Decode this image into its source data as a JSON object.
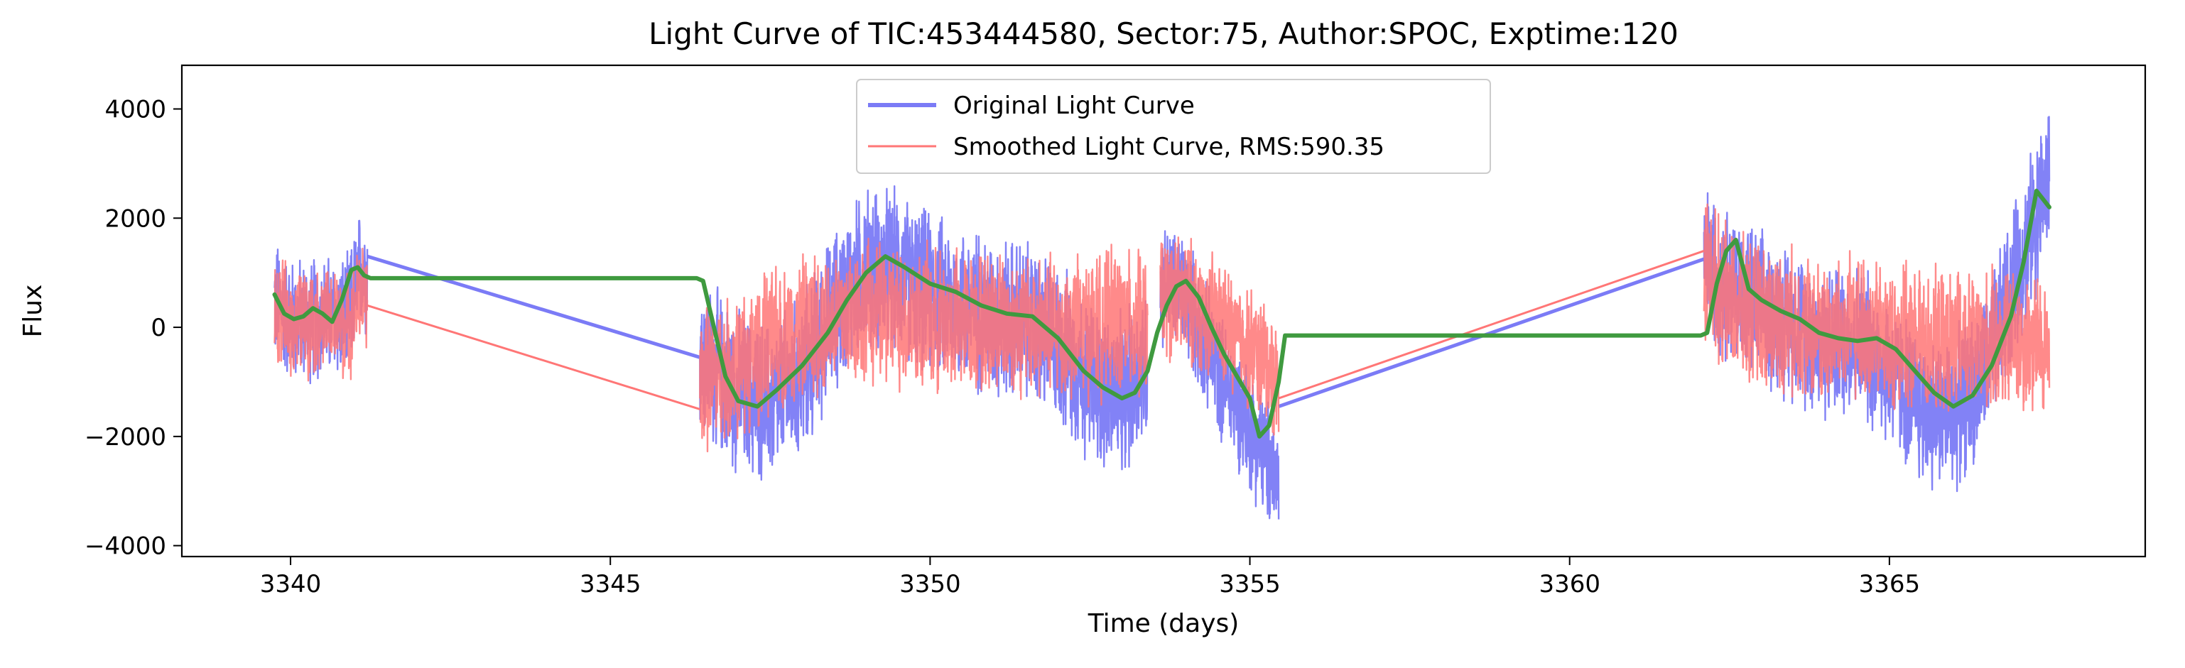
{
  "chart_data": {
    "type": "line",
    "title": "Light Curve of TIC:453444580, Sector:75, Author:SPOC, Exptime:120",
    "xlabel": "Time (days)",
    "ylabel": "Flux",
    "xlim": [
      3338.3,
      3369.0
    ],
    "ylim": [
      -4200,
      4800
    ],
    "xticks": [
      3340,
      3345,
      3350,
      3355,
      3360,
      3365
    ],
    "yticks": [
      -4000,
      -2000,
      0,
      2000,
      4000
    ],
    "xtick_labels": [
      "3340",
      "3345",
      "3350",
      "3355",
      "3360",
      "3365"
    ],
    "ytick_labels": [
      "−4000",
      "−2000",
      "0",
      "2000",
      "4000"
    ],
    "grid": false,
    "legend_position": "top-center",
    "colors": {
      "original": "#7b7bf6",
      "smoothed": "#ff7676",
      "trend": "#3f9a3f"
    },
    "series": [
      {
        "name": "Original Light Curve",
        "style": "noisy",
        "segments": [
          {
            "x": [
              3339.75,
              3340.0,
              3340.3,
              3340.6,
              3340.9,
              3341.1,
              3341.2
            ],
            "y": [
              500,
              150,
              150,
              200,
              150,
              1100,
              1000
            ],
            "amplitude": 1300
          },
          {
            "x": [
              3346.4,
              3347.0,
              3347.5,
              3348.0,
              3348.5,
              3349.0,
              3349.5,
              3350.0,
              3350.5,
              3351.0,
              3351.5,
              3352.0,
              3352.5,
              3353.0,
              3353.4
            ],
            "y": [
              -500,
              -1200,
              -1400,
              -900,
              300,
              1100,
              1000,
              600,
              400,
              200,
              100,
              -300,
              -1000,
              -1300,
              -600
            ],
            "amplitude": 1700
          },
          {
            "x": [
              3353.6,
              3354.0,
              3354.3,
              3354.6,
              3354.9,
              3355.2,
              3355.45
            ],
            "y": [
              800,
              600,
              -300,
              -1000,
              -1600,
              -2300,
              -2800
            ],
            "amplitude": 1300
          },
          {
            "x": [
              3362.1,
              3362.5,
              3363.0,
              3363.5,
              3364.0,
              3364.5,
              3365.0,
              3365.5,
              3366.0,
              3366.5,
              3367.0,
              3367.5
            ],
            "y": [
              1200,
              800,
              300,
              100,
              -300,
              -200,
              -800,
              -1500,
              -1600,
              -800,
              1000,
              2800
            ],
            "amplitude": 1600
          }
        ],
        "gap_lines": [
          {
            "x": [
              3341.2,
              3346.4
            ],
            "y": [
              1300,
              -550
            ]
          },
          {
            "x": [
              3355.45,
              3362.1
            ],
            "y": [
              -1450,
              1250
            ]
          }
        ]
      },
      {
        "name": "Smoothed Light Curve, RMS:590.35",
        "style": "noisy",
        "segments": [
          {
            "x": [
              3339.75,
              3340.0,
              3340.3,
              3340.6,
              3340.9,
              3341.1,
              3341.2
            ],
            "y": [
              300,
              100,
              100,
              100,
              0,
              600,
              450
            ],
            "amplitude": 1100
          },
          {
            "x": [
              3346.4,
              3347.0,
              3347.5,
              3348.0,
              3348.5,
              3349.0,
              3349.5,
              3350.0,
              3350.5,
              3351.0,
              3351.5,
              3352.0,
              3352.5,
              3353.0,
              3353.4
            ],
            "y": [
              -1000,
              -700,
              -300,
              0,
              200,
              300,
              200,
              100,
              100,
              100,
              50,
              0,
              0,
              100,
              0
            ],
            "amplitude": 1500
          },
          {
            "x": [
              3353.6,
              3354.0,
              3354.3,
              3354.6,
              3354.9,
              3355.2,
              3355.45
            ],
            "y": [
              600,
              500,
              300,
              0,
              -300,
              -600,
              -1000
            ],
            "amplitude": 1300
          },
          {
            "x": [
              3362.1,
              3362.5,
              3363.0,
              3363.5,
              3364.0,
              3364.5,
              3365.0,
              3365.5,
              3366.0,
              3366.5,
              3367.0,
              3367.5
            ],
            "y": [
              1200,
              400,
              200,
              100,
              -100,
              0,
              -200,
              -300,
              -300,
              -300,
              -200,
              -400
            ],
            "amplitude": 1500
          }
        ],
        "gap_lines": [
          {
            "x": [
              3341.2,
              3346.4
            ],
            "y": [
              400,
              -1500
            ]
          },
          {
            "x": [
              3355.45,
              3362.1
            ],
            "y": [
              -1300,
              1400
            ]
          }
        ]
      },
      {
        "name": "",
        "style": "smooth",
        "x": [
          3339.75,
          3339.9,
          3340.05,
          3340.2,
          3340.35,
          3340.5,
          3340.65,
          3340.8,
          3340.95,
          3341.05,
          3341.15,
          3341.25,
          3346.35,
          3346.45,
          3346.6,
          3346.8,
          3347.0,
          3347.3,
          3347.6,
          3348.0,
          3348.4,
          3348.7,
          3349.0,
          3349.3,
          3349.6,
          3350.0,
          3350.4,
          3350.8,
          3351.2,
          3351.6,
          3352.0,
          3352.4,
          3352.7,
          3353.0,
          3353.2,
          3353.4,
          3353.55,
          3353.7,
          3353.85,
          3354.0,
          3354.2,
          3354.4,
          3354.6,
          3354.8,
          3355.0,
          3355.15,
          3355.3,
          3355.45,
          3355.55,
          3362.05,
          3362.15,
          3362.3,
          3362.45,
          3362.6,
          3362.8,
          3363.0,
          3363.3,
          3363.6,
          3363.9,
          3364.2,
          3364.5,
          3364.8,
          3365.1,
          3365.4,
          3365.7,
          3366.0,
          3366.3,
          3366.6,
          3366.9,
          3367.1,
          3367.3,
          3367.5
        ],
        "y": [
          600,
          250,
          150,
          200,
          350,
          250,
          100,
          500,
          1050,
          1100,
          950,
          900,
          900,
          850,
          100,
          -900,
          -1350,
          -1450,
          -1150,
          -700,
          -100,
          500,
          1000,
          1300,
          1100,
          800,
          650,
          400,
          250,
          200,
          -200,
          -800,
          -1100,
          -1300,
          -1200,
          -800,
          -100,
          400,
          750,
          850,
          550,
          0,
          -500,
          -900,
          -1300,
          -2000,
          -1800,
          -1000,
          -150,
          -150,
          -100,
          800,
          1400,
          1600,
          700,
          500,
          300,
          150,
          -100,
          -200,
          -250,
          -200,
          -400,
          -800,
          -1200,
          -1450,
          -1250,
          -700,
          200,
          1200,
          2500,
          2200
        ]
      }
    ]
  }
}
